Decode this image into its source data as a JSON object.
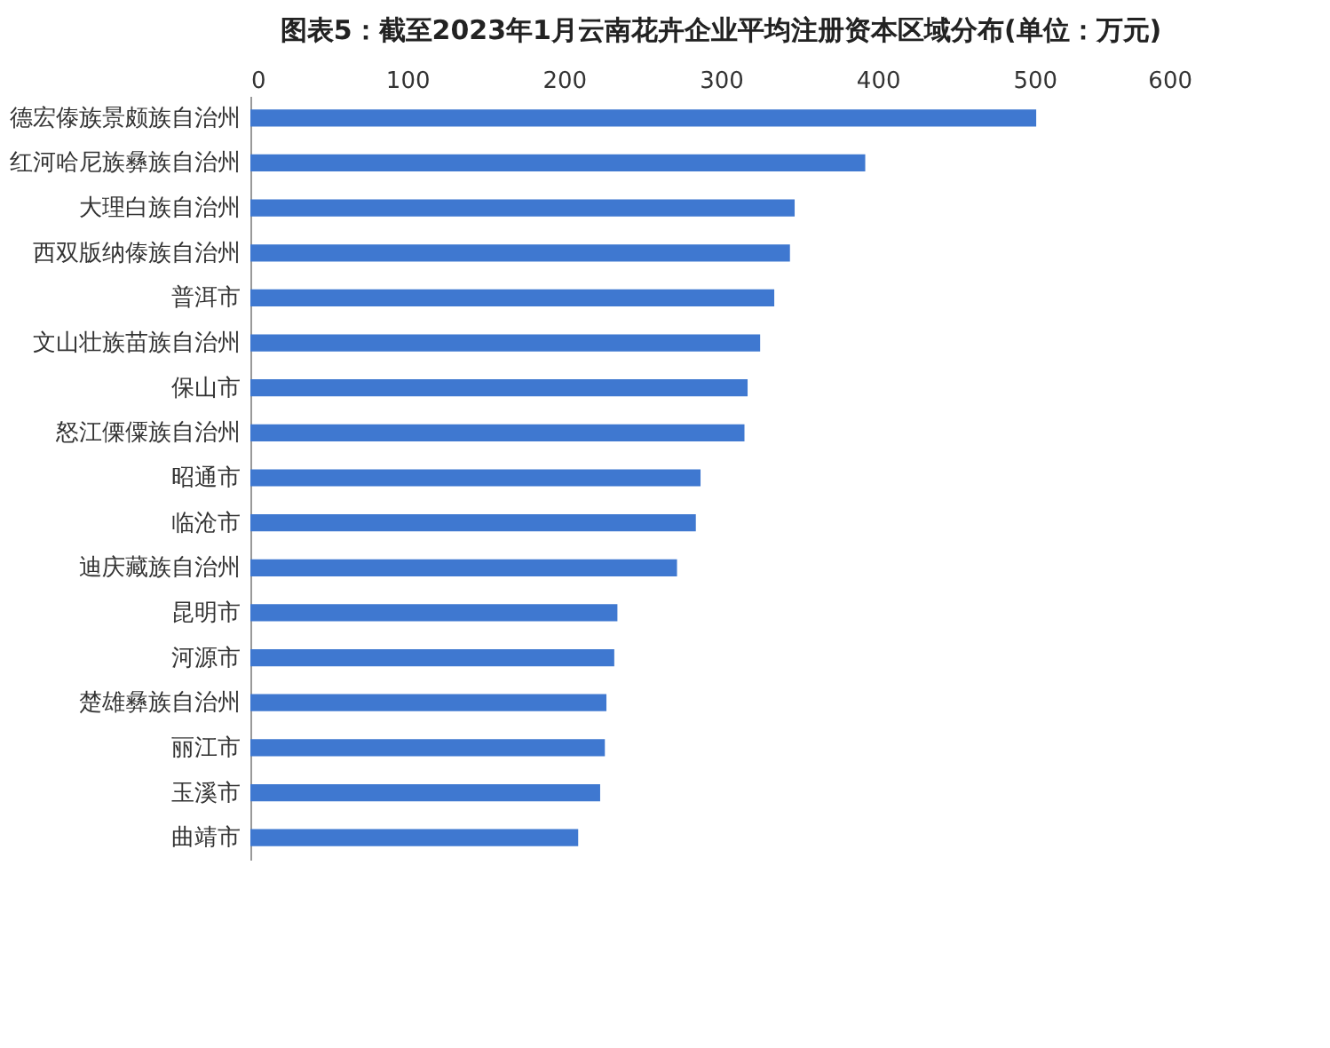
{
  "chart_data": {
    "type": "bar",
    "orientation": "horizontal",
    "title": "图表5：截至2023年1月云南花卉企业平均注册资本区域分布(单位：万元)",
    "categories": [
      "德宏傣族景颇族自治州",
      "红河哈尼族彝族自治州",
      "大理白族自治州",
      "西双版纳傣族自治州",
      "普洱市",
      "文山壮族苗族自治州",
      "保山市",
      "怒江傈僳族自治州",
      "昭通市",
      "临沧市",
      "迪庆藏族自治州",
      "昆明市",
      "河源市",
      "楚雄彝族自治州",
      "丽江市",
      "玉溪市",
      "曲靖市"
    ],
    "values": [
      501,
      392,
      347,
      344,
      334,
      325,
      317,
      315,
      287,
      284,
      272,
      234,
      232,
      227,
      226,
      223,
      209
    ],
    "color": "#3f78d0",
    "xlim": [
      0,
      600
    ],
    "xticks": [
      0,
      100,
      200,
      300,
      400,
      500,
      600
    ],
    "grid": false
  }
}
